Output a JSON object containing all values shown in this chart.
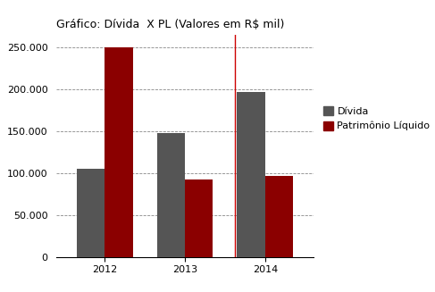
{
  "title": "Gráfico: Dívida  X PL (Valores em R$ mil)",
  "years": [
    "2012",
    "2013",
    "2014"
  ],
  "divida": [
    105000,
    148000,
    197000
  ],
  "patrimonio": [
    250000,
    93000,
    97000
  ],
  "bar_color_divida": "#555555",
  "bar_color_patrimonio": "#8B0000",
  "ylim": [
    0,
    265000
  ],
  "yticks": [
    0,
    50000,
    100000,
    150000,
    200000,
    250000
  ],
  "ytick_labels": [
    "0",
    "50.000",
    "100.000",
    "150.000",
    "200.000",
    "250.000"
  ],
  "legend_divida": "Dívida",
  "legend_patrimonio": "Patrimônio Líquido",
  "vline_color": "#cc0000",
  "grid_color": "#888888",
  "title_fontsize": 9,
  "tick_fontsize": 8,
  "legend_fontsize": 8
}
